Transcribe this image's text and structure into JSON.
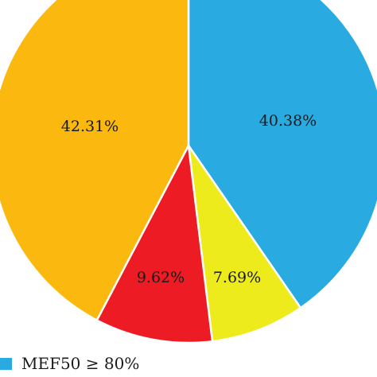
{
  "chart_data": {
    "type": "pie",
    "start_angle_deg": 0,
    "direction": "clockwise",
    "slices": [
      {
        "name": "MEF50 ≥ 80%",
        "value": 40.38,
        "label": "40.38%",
        "color": "#29abe2"
      },
      {
        "name": "",
        "value": 7.69,
        "label": "7.69%",
        "color": "#eeeb1c"
      },
      {
        "name": "",
        "value": 9.62,
        "label": "9.62%",
        "color": "#ed1c24"
      },
      {
        "name": "",
        "value": 42.31,
        "label": "42.31%",
        "color": "#fbb80f"
      }
    ],
    "legend": {
      "placement": "bottom-left",
      "items": [
        {
          "label": "MEF50 ≥ 80%",
          "color": "#29abe2"
        }
      ]
    }
  }
}
